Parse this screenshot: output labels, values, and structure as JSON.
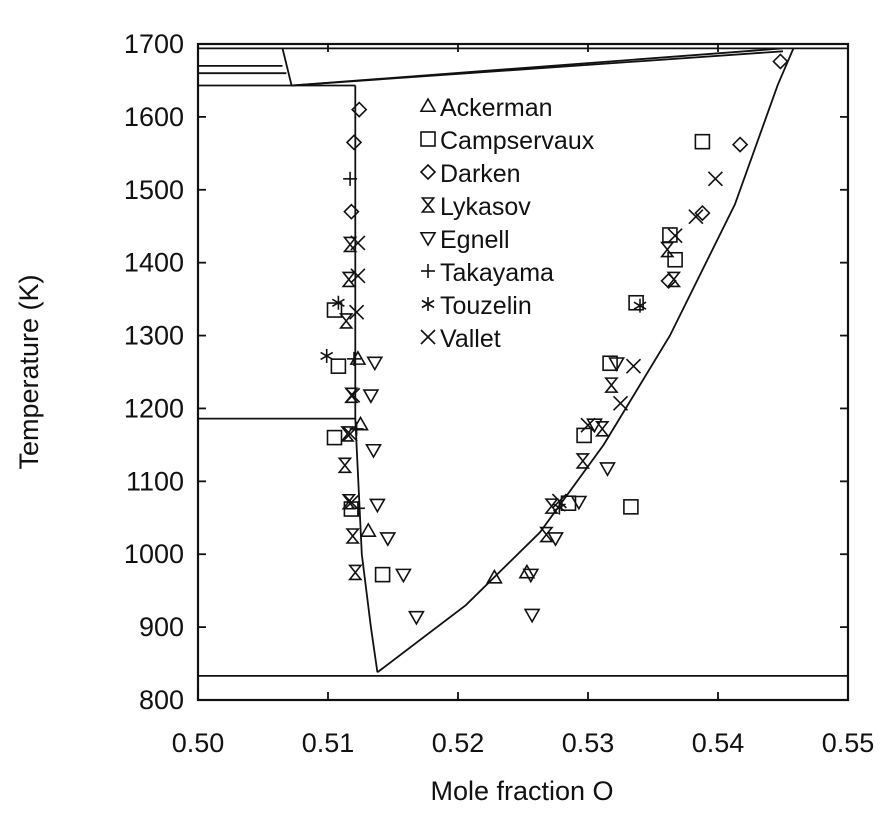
{
  "chart_data": {
    "type": "scatter",
    "title": "",
    "xlabel": "Mole fraction O",
    "ylabel": "Temperature (K)",
    "xlim": [
      0.5,
      0.55
    ],
    "ylim": [
      800,
      1700
    ],
    "xticks": [
      0.5,
      0.51,
      0.52,
      0.53,
      0.54,
      0.55
    ],
    "xtick_labels": [
      "0.50",
      "0.51",
      "0.52",
      "0.53",
      "0.54",
      "0.55"
    ],
    "yticks": [
      800,
      900,
      1000,
      1100,
      1200,
      1300,
      1400,
      1500,
      1600,
      1700
    ],
    "ytick_labels": [
      "800",
      "900",
      "1000",
      "1100",
      "1200",
      "1300",
      "1400",
      "1500",
      "1600",
      "1700"
    ],
    "grid": false,
    "legend_position": "top-center",
    "phase_boundaries": [
      {
        "points": [
          [
            0.5,
            833
          ],
          [
            0.55,
            833
          ]
        ]
      },
      {
        "points": [
          [
            0.5,
            1186
          ],
          [
            0.5121,
            1186
          ]
        ]
      },
      {
        "points": [
          [
            0.5,
            1643
          ],
          [
            0.5121,
            1643
          ]
        ]
      },
      {
        "points": [
          [
            0.5,
            1660
          ],
          [
            0.5068,
            1660
          ]
        ]
      },
      {
        "points": [
          [
            0.5,
            1670
          ],
          [
            0.5065,
            1670
          ]
        ]
      },
      {
        "points": [
          [
            0.5,
            1694
          ],
          [
            0.55,
            1694
          ]
        ]
      },
      {
        "points": [
          [
            0.5065,
            1694
          ],
          [
            0.5072,
            1643
          ]
        ]
      },
      {
        "points": [
          [
            0.5072,
            1643
          ],
          [
            0.545,
            1694
          ]
        ]
      },
      {
        "points": [
          [
            0.5072,
            1643
          ],
          [
            0.545,
            1690
          ]
        ]
      },
      {
        "points": [
          [
            0.5121,
            1643
          ],
          [
            0.5121,
            1186
          ]
        ]
      },
      {
        "points": [
          [
            0.5121,
            1186
          ],
          [
            0.5126,
            1000
          ],
          [
            0.5133,
            900
          ],
          [
            0.5138,
            838
          ]
        ]
      },
      {
        "points": [
          [
            0.5138,
            838
          ],
          [
            0.5206,
            930
          ],
          [
            0.5263,
            1030
          ],
          [
            0.5312,
            1150
          ],
          [
            0.5363,
            1300
          ],
          [
            0.5413,
            1480
          ],
          [
            0.5446,
            1644
          ],
          [
            0.5458,
            1694
          ]
        ]
      }
    ],
    "series": [
      {
        "name": "Ackerman",
        "marker": "triangle-up",
        "points": [
          [
            0.5123,
            1268
          ],
          [
            0.5125,
            1178
          ],
          [
            0.5131,
            1032
          ],
          [
            0.5228,
            968
          ],
          [
            0.5253,
            975
          ]
        ]
      },
      {
        "name": "Campservaux",
        "marker": "square",
        "points": [
          [
            0.5105,
            1335
          ],
          [
            0.5108,
            1258
          ],
          [
            0.5105,
            1160
          ],
          [
            0.5118,
            1062
          ],
          [
            0.5142,
            972
          ],
          [
            0.5285,
            1070
          ],
          [
            0.5297,
            1163
          ],
          [
            0.5317,
            1262
          ],
          [
            0.5337,
            1345
          ],
          [
            0.5363,
            1438
          ],
          [
            0.5367,
            1404
          ],
          [
            0.5388,
            1566
          ],
          [
            0.5333,
            1065
          ]
        ]
      },
      {
        "name": "Darken",
        "marker": "diamond",
        "points": [
          [
            0.5124,
            1610
          ],
          [
            0.512,
            1565
          ],
          [
            0.5118,
            1470
          ],
          [
            0.5388,
            1468
          ],
          [
            0.5417,
            1562
          ],
          [
            0.5448,
            1676
          ],
          [
            0.5362,
            1375
          ]
        ]
      },
      {
        "name": "Lykasov",
        "marker": "hourglass",
        "points": [
          [
            0.5117,
            1425
          ],
          [
            0.5116,
            1377
          ],
          [
            0.5114,
            1320
          ],
          [
            0.5118,
            1218
          ],
          [
            0.5115,
            1165
          ],
          [
            0.5113,
            1122
          ],
          [
            0.5116,
            1072
          ],
          [
            0.5119,
            1025
          ],
          [
            0.5121,
            975
          ],
          [
            0.5268,
            1027
          ],
          [
            0.5272,
            1066
          ],
          [
            0.5296,
            1128
          ],
          [
            0.5311,
            1172
          ],
          [
            0.5318,
            1232
          ],
          [
            0.5361,
            1418
          ],
          [
            0.5366,
            1377
          ]
        ]
      },
      {
        "name": "Egnell",
        "marker": "triangle-down",
        "points": [
          [
            0.5136,
            1263
          ],
          [
            0.5133,
            1218
          ],
          [
            0.5135,
            1143
          ],
          [
            0.5138,
            1068
          ],
          [
            0.5146,
            1022
          ],
          [
            0.5158,
            972
          ],
          [
            0.5168,
            914
          ],
          [
            0.5256,
            972
          ],
          [
            0.5257,
            917
          ],
          [
            0.5275,
            1022
          ],
          [
            0.5293,
            1072
          ],
          [
            0.5315,
            1118
          ],
          [
            0.5305,
            1178
          ],
          [
            0.5322,
            1262
          ]
        ]
      },
      {
        "name": "Takayama",
        "marker": "plus",
        "points": [
          [
            0.5117,
            1515
          ],
          [
            0.512,
            1268
          ],
          [
            0.5122,
            1172
          ],
          [
            0.5123,
            1063
          ]
        ]
      },
      {
        "name": "Touzelin",
        "marker": "asterisk",
        "points": [
          [
            0.5099,
            1272
          ],
          [
            0.5108,
            1345
          ],
          [
            0.534,
            1341
          ],
          [
            0.5278,
            1064
          ]
        ]
      },
      {
        "name": "Vallet",
        "marker": "x",
        "points": [
          [
            0.5123,
            1427
          ],
          [
            0.5123,
            1382
          ],
          [
            0.5122,
            1332
          ],
          [
            0.5119,
            1218
          ],
          [
            0.5117,
            1165
          ],
          [
            0.5118,
            1071
          ],
          [
            0.5278,
            1073
          ],
          [
            0.53,
            1177
          ],
          [
            0.5335,
            1258
          ],
          [
            0.5325,
            1207
          ],
          [
            0.5367,
            1437
          ],
          [
            0.5383,
            1463
          ],
          [
            0.5398,
            1515
          ]
        ]
      }
    ]
  }
}
